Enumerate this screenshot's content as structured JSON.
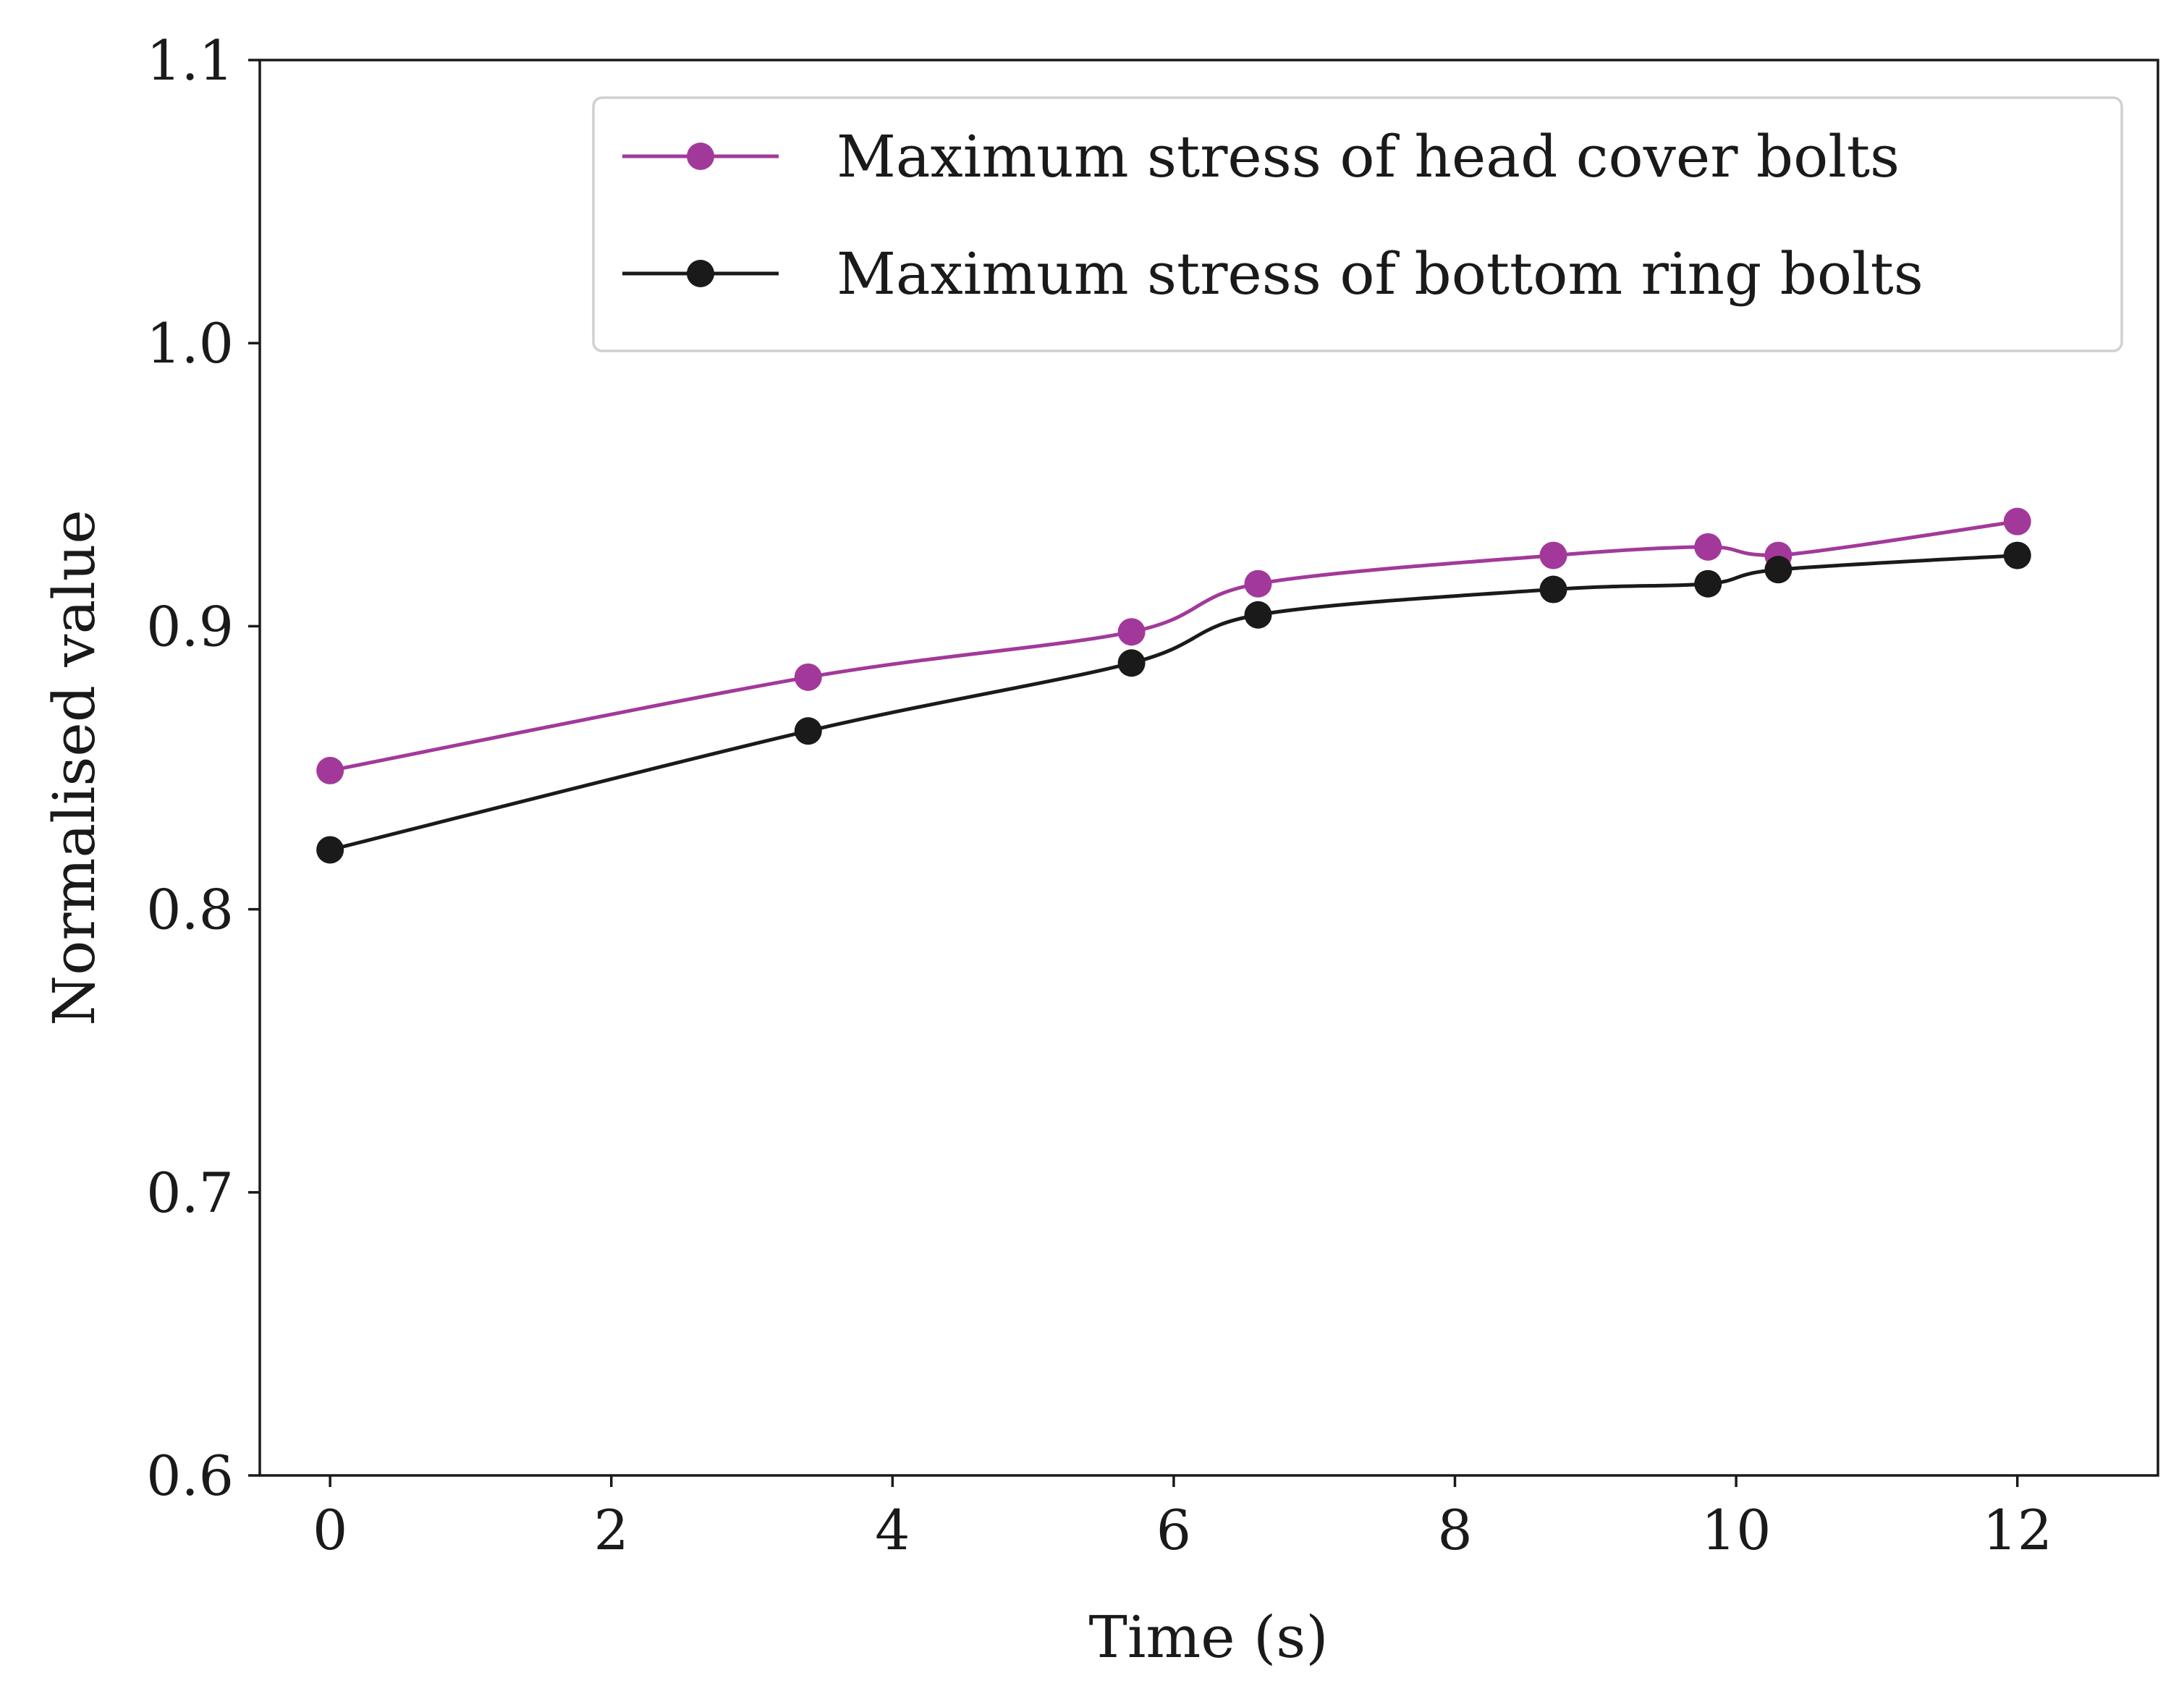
{
  "chart_data": {
    "type": "line",
    "title": "",
    "xlabel": "Time (s)",
    "ylabel": "Normalised value",
    "xlim": [
      -0.5,
      13
    ],
    "ylim": [
      0.6,
      1.1
    ],
    "xticks": [
      0,
      2,
      4,
      6,
      8,
      10,
      12
    ],
    "xtick_labels": [
      "0",
      "2",
      "4",
      "6",
      "8",
      "10",
      "12"
    ],
    "yticks": [
      0.6,
      0.7,
      0.8,
      0.9,
      1.0,
      1.1
    ],
    "ytick_labels": [
      "0.6",
      "0.7",
      "0.8",
      "0.9",
      "1.0",
      "1.1"
    ],
    "grid": false,
    "legend_position": "top-right",
    "series": [
      {
        "name": "Maximum stress of head cover bolts",
        "color": "#a2399a",
        "x": [
          0,
          3.4,
          5.7,
          6.6,
          8.7,
          9.8,
          10.3,
          12
        ],
        "y": [
          0.849,
          0.882,
          0.898,
          0.915,
          0.925,
          0.928,
          0.925,
          0.937
        ]
      },
      {
        "name": "Maximum stress of bottom ring bolts",
        "color": "#1a1a1a",
        "x": [
          0,
          3.4,
          5.7,
          6.6,
          8.7,
          9.8,
          10.3,
          12
        ],
        "y": [
          0.821,
          0.863,
          0.887,
          0.904,
          0.913,
          0.915,
          0.92,
          0.925
        ]
      }
    ]
  }
}
